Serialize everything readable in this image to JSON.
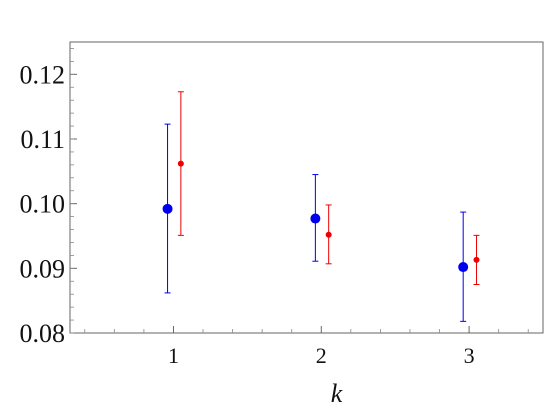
{
  "chart_data": {
    "type": "scatter",
    "title": "",
    "xlabel": "k",
    "ylabel": "",
    "xlim": [
      0.3,
      3.5
    ],
    "ylim": [
      0.08,
      0.125
    ],
    "x_ticks": [
      {
        "value": 1,
        "label": "1"
      },
      {
        "value": 2,
        "label": "2"
      },
      {
        "value": 3,
        "label": "3"
      }
    ],
    "y_ticks": [
      {
        "value": 0.08,
        "label": "0.08"
      },
      {
        "value": 0.09,
        "label": "0.09"
      },
      {
        "value": 0.1,
        "label": "0.10"
      },
      {
        "value": 0.11,
        "label": "0.11"
      },
      {
        "value": 0.12,
        "label": "0.12"
      }
    ],
    "grid": false,
    "series": [
      {
        "color": "#0000ee",
        "marker": "large-dot",
        "points": [
          {
            "x": 0.96,
            "y": 0.0992,
            "low": 0.0862,
            "high": 0.1123
          },
          {
            "x": 1.96,
            "y": 0.0977,
            "low": 0.0911,
            "high": 0.1045
          },
          {
            "x": 2.96,
            "y": 0.0902,
            "low": 0.0818,
            "high": 0.0987
          }
        ]
      },
      {
        "color": "#ee0000",
        "marker": "small-dot",
        "points": [
          {
            "x": 1.05,
            "y": 0.1062,
            "low": 0.0951,
            "high": 0.1173
          },
          {
            "x": 2.05,
            "y": 0.0952,
            "low": 0.0907,
            "high": 0.0998
          },
          {
            "x": 3.05,
            "y": 0.0913,
            "low": 0.0875,
            "high": 0.0951
          }
        ]
      }
    ]
  }
}
